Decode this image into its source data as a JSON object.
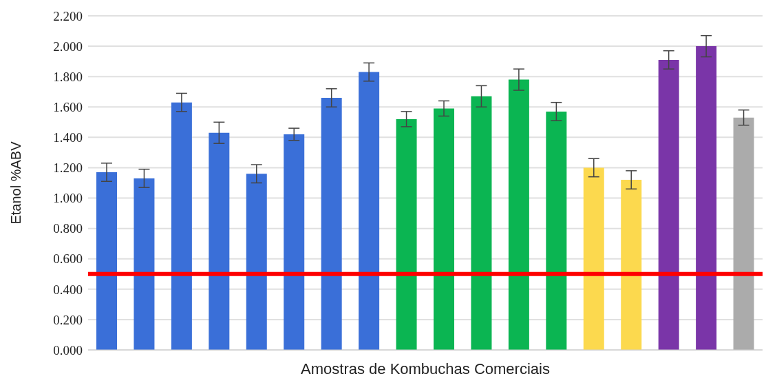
{
  "chart_data": {
    "type": "bar",
    "xlabel": "Amostras de Kombuchas Comerciais",
    "ylabel": "Etanol %ABV",
    "categories": [
      null,
      null,
      null,
      null,
      null,
      null,
      null,
      null,
      null,
      null,
      null,
      null,
      null,
      null,
      null,
      null,
      null,
      null
    ],
    "values": [
      1.17,
      1.13,
      1.63,
      1.43,
      1.16,
      1.42,
      1.66,
      1.83,
      1.52,
      1.59,
      1.67,
      1.78,
      1.57,
      1.2,
      1.12,
      1.91,
      2.0,
      1.53
    ],
    "errors": [
      0.06,
      0.06,
      0.06,
      0.07,
      0.06,
      0.04,
      0.06,
      0.06,
      0.05,
      0.05,
      0.07,
      0.07,
      0.06,
      0.06,
      0.06,
      0.06,
      0.07,
      0.05
    ],
    "colors": [
      "#3a6fd8",
      "#3a6fd8",
      "#3a6fd8",
      "#3a6fd8",
      "#3a6fd8",
      "#3a6fd8",
      "#3a6fd8",
      "#3a6fd8",
      "#0bb552",
      "#0bb552",
      "#0bb552",
      "#0bb552",
      "#0bb552",
      "#fcd94e",
      "#fcd94e",
      "#7a35a8",
      "#7a35a8",
      "#ababab"
    ],
    "ylim": [
      0,
      2.2
    ],
    "yticks": [
      {
        "value": 0,
        "label": "0.000"
      },
      {
        "value": 0.2,
        "label": "0.200"
      },
      {
        "value": 0.4,
        "label": "0.400"
      },
      {
        "value": 0.6,
        "label": "0.600"
      },
      {
        "value": 0.8,
        "label": "0.800"
      },
      {
        "value": 1,
        "label": "1.000"
      },
      {
        "value": 1.2,
        "label": "1.200"
      },
      {
        "value": 1.4,
        "label": "1.400"
      },
      {
        "value": 1.6,
        "label": "1.600"
      },
      {
        "value": 1.8,
        "label": "1.800"
      },
      {
        "value": 2,
        "label": "2.000"
      },
      {
        "value": 2.2,
        "label": "2.200"
      }
    ],
    "grid": "y",
    "ref_lines": [
      {
        "axis": "y",
        "value": 0.5,
        "color": "#ff0000"
      }
    ]
  }
}
